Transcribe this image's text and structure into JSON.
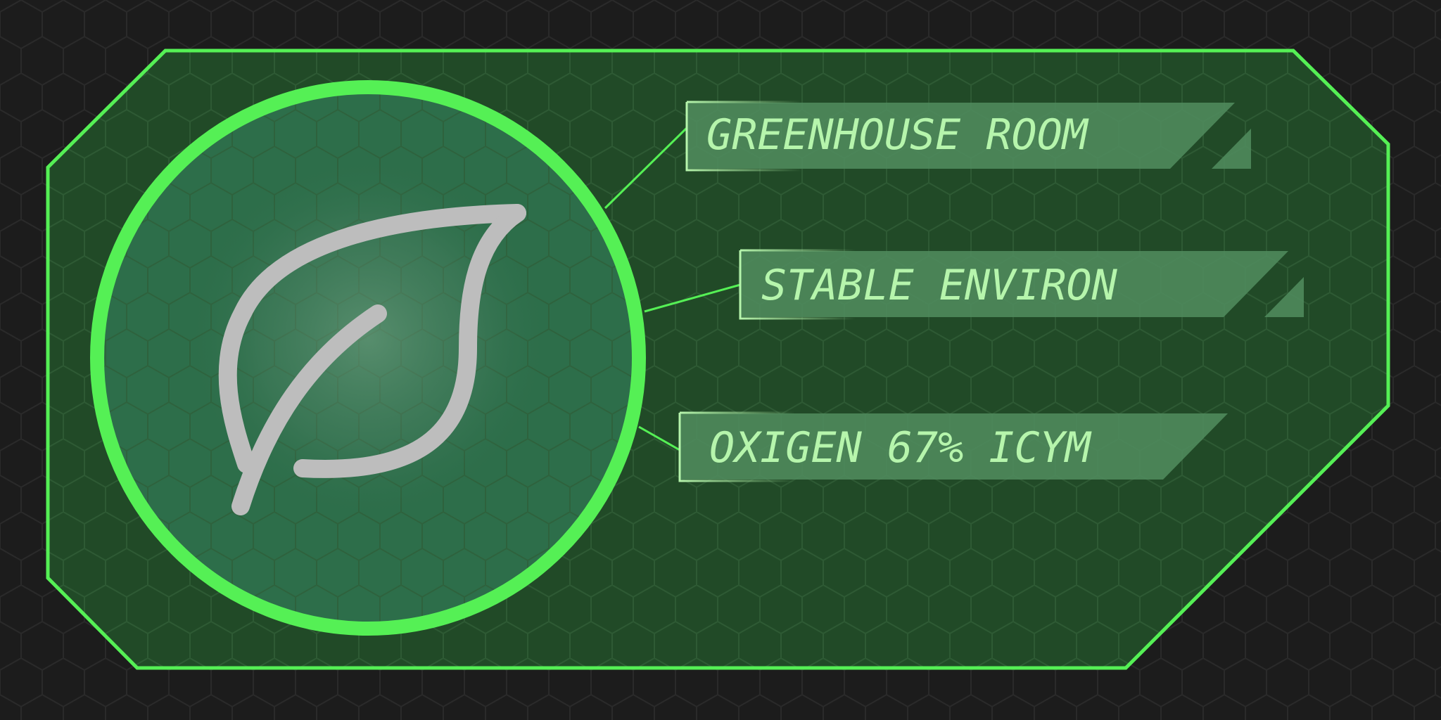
{
  "hud": {
    "title": "GREENHOUSE ROOM",
    "status": "STABLE ENVIRON",
    "oxygen": "OXIGEN 67% ICYM"
  },
  "icon": {
    "name": "leaf-icon"
  },
  "colors": {
    "background": "#1c1c1c",
    "panel_fill": "#214a27",
    "accent_green": "#55f055",
    "circle_fill": "#2d6e4a",
    "tag_fill": "#4f8a5c",
    "tag_border": "#b6f5ac",
    "label_text": "#b6f5ac",
    "leaf_stroke": "#bdbdbd"
  }
}
